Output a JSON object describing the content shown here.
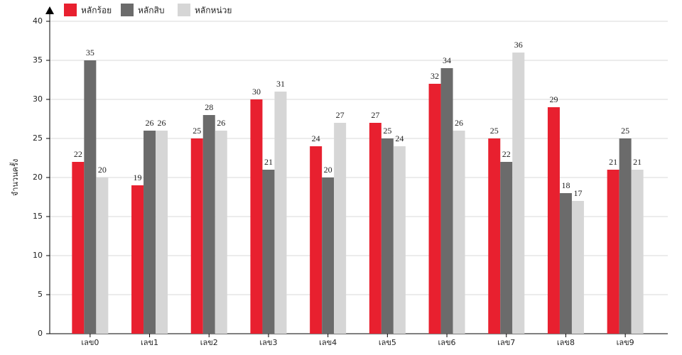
{
  "chart_data": {
    "type": "bar",
    "y_label": "จำนวนครั้ง",
    "categories": [
      "เลข0",
      "เลข1",
      "เลข2",
      "เลข3",
      "เลข4",
      "เลข5",
      "เลข6",
      "เลข7",
      "เลข8",
      "เลข9"
    ],
    "series": [
      {
        "name": "หลักร้อย",
        "color": "#e8202f",
        "values": [
          22,
          19,
          25,
          30,
          24,
          27,
          32,
          25,
          29,
          21
        ]
      },
      {
        "name": "หลักสิบ",
        "color": "#6b6b6b",
        "values": [
          35,
          26,
          28,
          21,
          20,
          25,
          34,
          22,
          18,
          25
        ]
      },
      {
        "name": "หลักหน่วย",
        "color": "#d6d6d6",
        "values": [
          20,
          26,
          26,
          31,
          27,
          24,
          26,
          36,
          17,
          21
        ]
      }
    ],
    "ylim": [
      0,
      40
    ],
    "yticks": [
      0,
      5,
      10,
      15,
      20,
      25,
      30,
      35,
      40
    ],
    "grid": true
  }
}
